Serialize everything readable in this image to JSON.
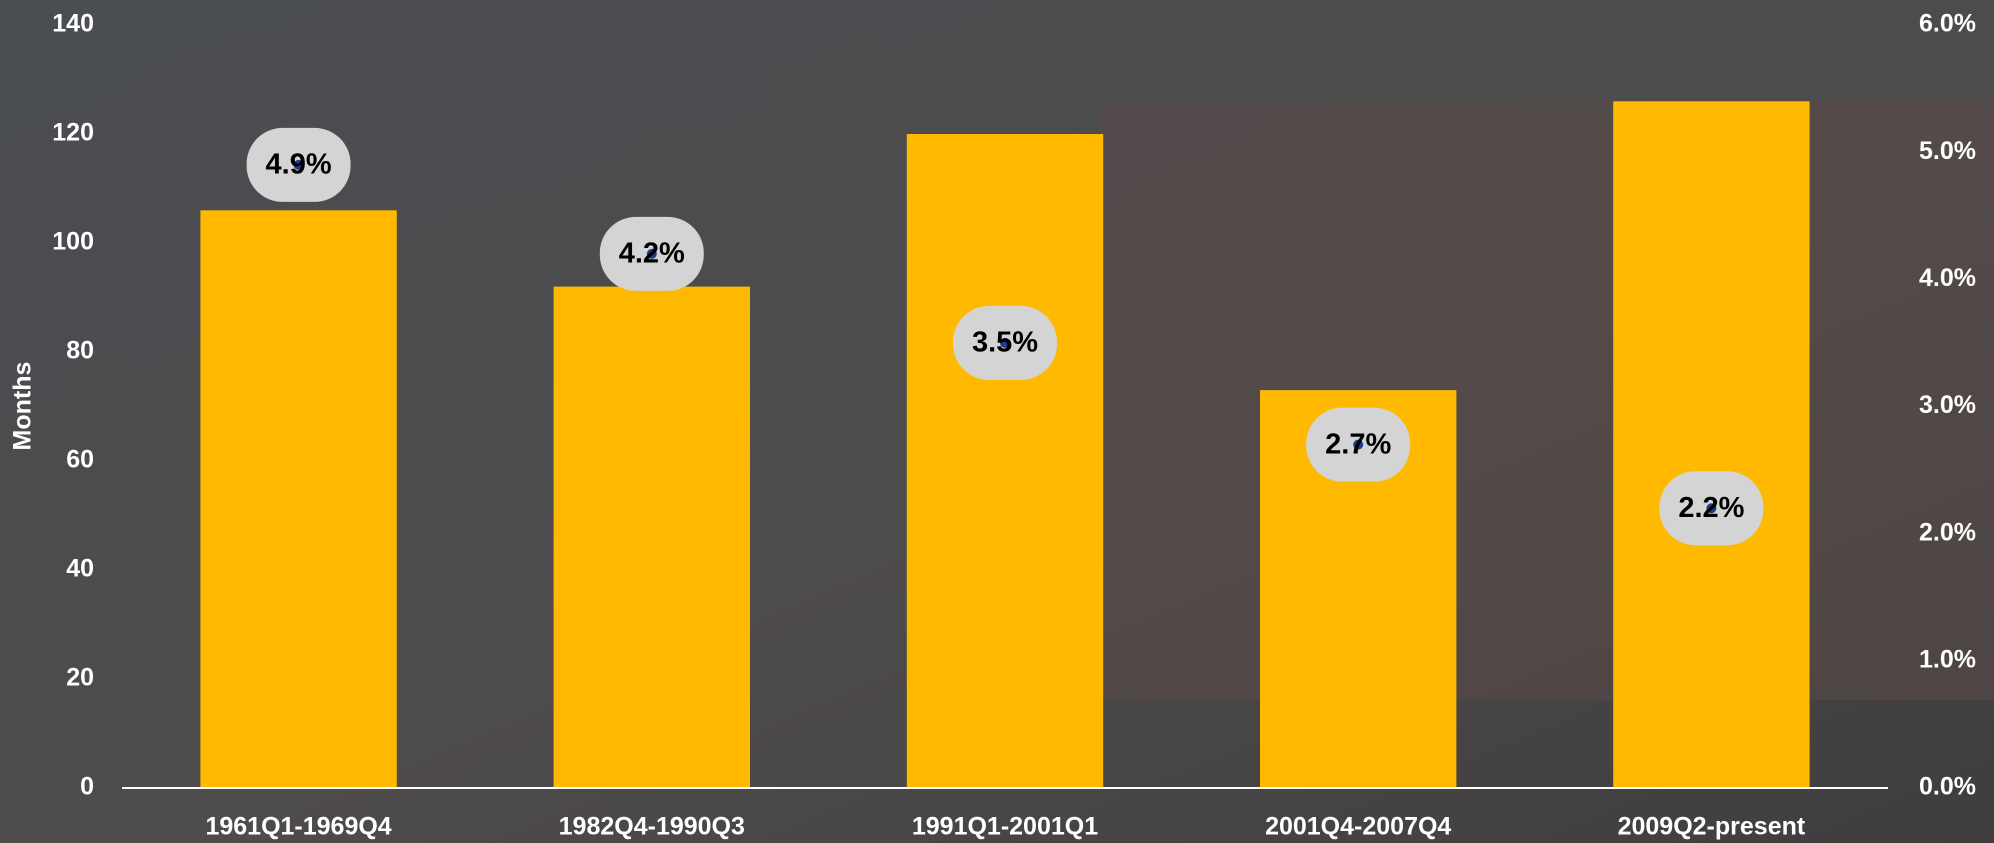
{
  "chart_data": {
    "type": "bar",
    "y_label": "Months",
    "categories": [
      "1961Q1-1969Q4",
      "1982Q4-1990Q3",
      "1991Q1-2001Q1",
      "2001Q4-2007Q4",
      "2009Q2-present"
    ],
    "series": [
      {
        "color": "#ffb900",
        "values": [
          106,
          92,
          120,
          73,
          126
        ]
      },
      {
        "axis": "y2",
        "color": "#1f3a8f",
        "values": [
          4.9,
          4.2,
          3.5,
          2.7,
          2.2
        ],
        "value_labels": [
          "4.9%",
          "4.2%",
          "3.5%",
          "2.7%",
          "2.2%"
        ]
      }
    ],
    "ylim": [
      0,
      140
    ],
    "yticks": [
      0,
      20,
      40,
      60,
      80,
      100,
      120,
      140
    ],
    "y2lim": [
      0,
      6
    ],
    "y2ticks": [
      {
        "value": 0,
        "label": "0.0%"
      },
      {
        "value": 1,
        "label": "1.0%"
      },
      {
        "value": 2,
        "label": "2.0%"
      },
      {
        "value": 3,
        "label": "3.0%"
      },
      {
        "value": 4,
        "label": "4.0%"
      },
      {
        "value": 5,
        "label": "5.0%"
      },
      {
        "value": 6,
        "label": "6.0%"
      }
    ],
    "grid": false
  }
}
